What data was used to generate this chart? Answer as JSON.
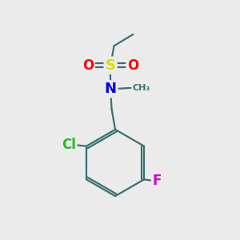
{
  "background_color": "#ebebeb",
  "atom_colors": {
    "C": "#3a7070",
    "N": "#0000ee",
    "S": "#dddd00",
    "O": "#ff0000",
    "Cl": "#22bb22",
    "F": "#cc00cc"
  },
  "bond_color": "#3a7070",
  "bond_lw": 1.6,
  "font_size": 12
}
